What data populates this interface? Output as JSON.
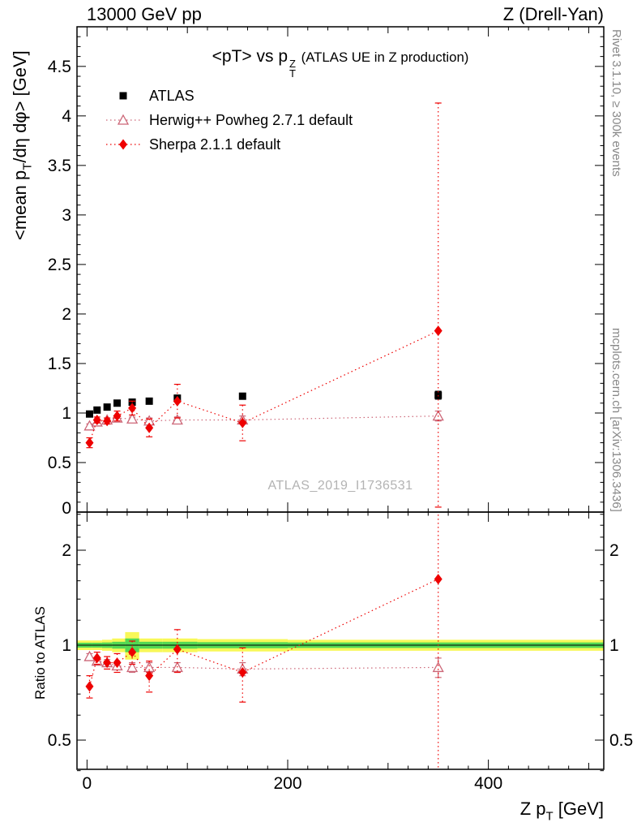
{
  "chart_data": {
    "type": "scatter",
    "header_left": "13000 GeV pp",
    "header_right": "Z (Drell-Yan)",
    "title_rich": [
      {
        "t": "<pT> vs p"
      },
      {
        "stack": [
          "Z",
          "T"
        ]
      },
      {
        "t": " (ATLAS UE in Z production)",
        "small": true
      }
    ],
    "watermark": "ATLAS_2019_I1736531",
    "right_text_top": "Rivet 3.1.10, ≥ 300k events",
    "right_text_bottom": "mcplots.cern.ch [arXiv:1306.3436]",
    "xlabel_rich": [
      {
        "t": "Z p"
      },
      {
        "t": "T",
        "sub": true
      },
      {
        "t": " [GeV]"
      }
    ],
    "ylabel_main_rich": [
      {
        "t": "<mean p"
      },
      {
        "t": "T",
        "sub": true
      },
      {
        "t": "/dη dφ> [GeV]"
      }
    ],
    "ylabel_ratio": "Ratio to ATLAS",
    "xlim": [
      -10,
      515
    ],
    "ylim_main": [
      0,
      4.9
    ],
    "ratio_scale": "log",
    "ratio_ylim": [
      0.404,
      2.64
    ],
    "x_ticks_labeled": [
      0,
      200,
      400
    ],
    "x_minor_step": 20,
    "y_ticks_main": [
      0,
      0.5,
      1,
      1.5,
      2,
      2.5,
      3,
      3.5,
      4,
      4.5
    ],
    "y_ticks_ratio": [
      0.5,
      1,
      2
    ],
    "y_ticks_ratio_minor": [
      0.4,
      0.6,
      0.7,
      0.8,
      0.9,
      1.2,
      1.4,
      1.6,
      1.8,
      2.2,
      2.4,
      2.6
    ],
    "ratio_band": {
      "yellow_color": "#f8f858",
      "green_color": "#53d853",
      "bins": [
        {
          "x0": -10,
          "x1": 5,
          "yellow": 0.035,
          "green": 0.018
        },
        {
          "x0": 5,
          "x1": 15,
          "yellow": 0.035,
          "green": 0.018
        },
        {
          "x0": 15,
          "x1": 25,
          "yellow": 0.04,
          "green": 0.02
        },
        {
          "x0": 25,
          "x1": 38,
          "yellow": 0.05,
          "green": 0.025
        },
        {
          "x0": 38,
          "x1": 52,
          "yellow": 0.1,
          "green": 0.05
        },
        {
          "x0": 52,
          "x1": 75,
          "yellow": 0.05,
          "green": 0.025
        },
        {
          "x0": 75,
          "x1": 110,
          "yellow": 0.05,
          "green": 0.025
        },
        {
          "x0": 110,
          "x1": 200,
          "yellow": 0.045,
          "green": 0.022
        },
        {
          "x0": 200,
          "x1": 515,
          "yellow": 0.04,
          "green": 0.02
        }
      ]
    },
    "series": [
      {
        "name": "ATLAS",
        "color": "#000000",
        "marker": "square",
        "line": "none",
        "err_dotted": false,
        "in_ratio": false,
        "x": [
          2.5,
          10,
          20,
          30,
          45,
          62,
          90,
          155,
          350
        ],
        "y": [
          0.99,
          1.03,
          1.06,
          1.1,
          1.11,
          1.12,
          1.15,
          1.17,
          1.18
        ],
        "yerr_lo": [
          0.02,
          0.02,
          0.02,
          0.02,
          0.02,
          0.03,
          0.03,
          0.03,
          0.04
        ],
        "yerr_hi": [
          0.02,
          0.02,
          0.02,
          0.02,
          0.02,
          0.03,
          0.03,
          0.03,
          0.04
        ]
      },
      {
        "name": "Herwig++ Powheg 2.7.1 default",
        "color": "#cc6677",
        "marker": "triangle-open",
        "line": "dotted",
        "err_dotted": false,
        "in_ratio": true,
        "x": [
          2.5,
          10,
          20,
          30,
          45,
          62,
          90,
          155,
          350
        ],
        "y": [
          0.87,
          0.91,
          0.93,
          0.95,
          0.94,
          0.92,
          0.93,
          0.93,
          0.97
        ],
        "yerr_lo": [
          0.02,
          0.02,
          0.02,
          0.02,
          0.02,
          0.03,
          0.03,
          0.04,
          0.05
        ],
        "yerr_hi": [
          0.02,
          0.02,
          0.02,
          0.02,
          0.02,
          0.03,
          0.03,
          0.04,
          0.05
        ],
        "ratio_y": [
          0.92,
          0.89,
          0.88,
          0.86,
          0.85,
          0.85,
          0.85,
          0.84,
          0.85
        ],
        "ratio_yerr_lo": [
          0.02,
          0.02,
          0.02,
          0.02,
          0.03,
          0.03,
          0.03,
          0.04,
          0.06
        ],
        "ratio_yerr_hi": [
          0.02,
          0.02,
          0.02,
          0.02,
          0.03,
          0.03,
          0.03,
          0.04,
          0.06
        ]
      },
      {
        "name": "Sherpa 2.1.1 default",
        "color": "#ee0000",
        "marker": "diamond",
        "line": "dotted",
        "err_dotted": true,
        "in_ratio": true,
        "x": [
          2.5,
          10,
          20,
          30,
          45,
          62,
          90,
          155,
          350
        ],
        "y": [
          0.7,
          0.93,
          0.92,
          0.97,
          1.05,
          0.85,
          1.12,
          0.9,
          1.83
        ],
        "yerr_lo": [
          0.05,
          0.03,
          0.03,
          0.05,
          0.07,
          0.09,
          0.17,
          0.18,
          1.78
        ],
        "yerr_hi": [
          0.05,
          0.03,
          0.03,
          0.05,
          0.07,
          0.09,
          0.17,
          0.18,
          2.3
        ],
        "ratio_y": [
          0.74,
          0.91,
          0.88,
          0.88,
          0.95,
          0.8,
          0.97,
          0.82,
          1.62
        ],
        "ratio_yerr_lo": [
          0.06,
          0.04,
          0.04,
          0.06,
          0.08,
          0.09,
          0.15,
          0.16,
          1.3
        ],
        "ratio_yerr_hi": [
          0.06,
          0.04,
          0.04,
          0.06,
          0.08,
          0.09,
          0.15,
          0.16,
          1.3
        ]
      }
    ]
  }
}
